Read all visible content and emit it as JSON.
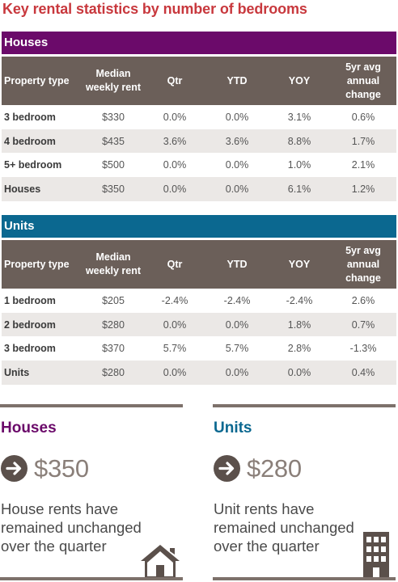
{
  "title": "Key rental statistics by number of bedrooms",
  "houses_section": {
    "label": "Houses",
    "headers": [
      "Property type",
      "Median weekly rent",
      "Qtr",
      "YTD",
      "YOY",
      "5yr avg annual change"
    ],
    "rows": [
      [
        "3 bedroom",
        "$330",
        "0.0%",
        "0.0%",
        "3.1%",
        "0.6%"
      ],
      [
        "4 bedroom",
        "$435",
        "3.6%",
        "3.6%",
        "8.8%",
        "1.7%"
      ],
      [
        "5+ bedroom",
        "$500",
        "0.0%",
        "0.0%",
        "1.0%",
        "2.1%"
      ],
      [
        "Houses",
        "$350",
        "0.0%",
        "0.0%",
        "6.1%",
        "1.2%"
      ]
    ]
  },
  "units_section": {
    "label": "Units",
    "headers": [
      "Property type",
      "Median weekly rent",
      "Qtr",
      "YTD",
      "YOY",
      "5yr avg annual change"
    ],
    "rows": [
      [
        "1 bedroom",
        "$205",
        "-2.4%",
        "-2.4%",
        "-2.4%",
        "2.6%"
      ],
      [
        "2 bedroom",
        "$280",
        "0.0%",
        "0.0%",
        "1.8%",
        "0.7%"
      ],
      [
        "3 bedroom",
        "$370",
        "5.7%",
        "5.7%",
        "2.8%",
        "-1.3%"
      ],
      [
        "Units",
        "$280",
        "0.0%",
        "0.0%",
        "0.0%",
        "0.4%"
      ]
    ]
  },
  "summary": {
    "houses": {
      "heading": "Houses",
      "value": "$350",
      "description": "House rents have remained unchanged over the quarter",
      "icon": "house-icon",
      "color": "#6b0a6a"
    },
    "units": {
      "heading": "Units",
      "value": "$280",
      "description": "Unit rents have remained unchanged over the quarter",
      "icon": "building-icon",
      "color": "#0b6890"
    }
  },
  "colors": {
    "title": "#c8383d",
    "houses_bar": "#6b0a6a",
    "units_bar": "#0b6890",
    "header_bg": "#6b5f59",
    "stripe": "#ebe8e6"
  }
}
